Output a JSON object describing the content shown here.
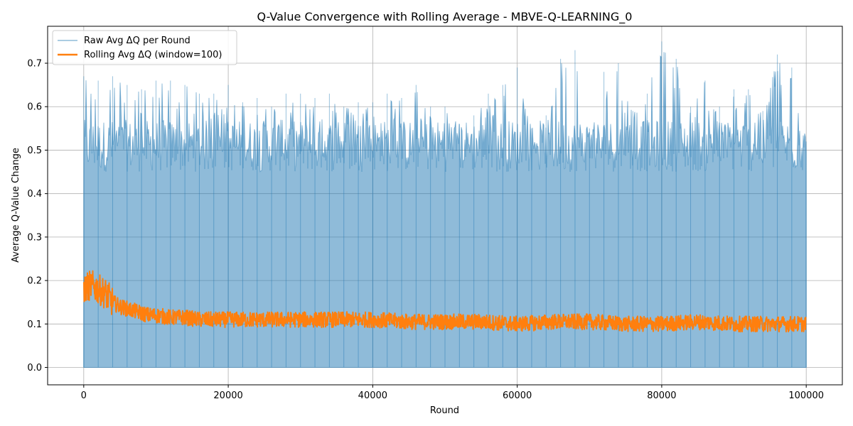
{
  "chart_data": {
    "type": "area",
    "title": "Q-Value Convergence with Rolling Average - MBVE-Q-LEARNING_0",
    "xlabel": "Round",
    "ylabel": "Average Q-Value Change",
    "xlim": [
      -5000,
      105000
    ],
    "ylim": [
      -0.04,
      0.785
    ],
    "x_ticks": [
      0,
      20000,
      40000,
      60000,
      80000,
      100000
    ],
    "x_tick_labels": [
      "0",
      "20000",
      "40000",
      "60000",
      "80000",
      "100000"
    ],
    "y_ticks": [
      0.0,
      0.1,
      0.2,
      0.3,
      0.4,
      0.5,
      0.6,
      0.7
    ],
    "y_tick_labels": [
      "0.0",
      "0.1",
      "0.2",
      "0.3",
      "0.4",
      "0.5",
      "0.6",
      "0.7"
    ],
    "grid": true,
    "legend_position": "top-left",
    "series": [
      {
        "name": "Raw Avg ΔQ per Round",
        "color": "#1f77b4",
        "style": "filled band from 0",
        "x": [
          0,
          2000,
          4000,
          6000,
          8000,
          10000,
          12000,
          14000,
          16000,
          18000,
          20000,
          22000,
          24000,
          26000,
          28000,
          30000,
          32000,
          34000,
          36000,
          38000,
          40000,
          42000,
          44000,
          46000,
          48000,
          50000,
          52000,
          54000,
          56000,
          58000,
          60000,
          62000,
          64000,
          66000,
          68000,
          70000,
          72000,
          74000,
          76000,
          78000,
          80000,
          82000,
          84000,
          86000,
          88000,
          90000,
          92000,
          94000,
          96000,
          98000,
          100000
        ],
        "values": [
          0.67,
          0.66,
          0.67,
          0.65,
          0.64,
          0.66,
          0.66,
          0.65,
          0.63,
          0.63,
          0.65,
          0.61,
          0.62,
          0.6,
          0.63,
          0.63,
          0.62,
          0.63,
          0.6,
          0.61,
          0.61,
          0.63,
          0.62,
          0.65,
          0.6,
          0.6,
          0.56,
          0.58,
          0.63,
          0.65,
          0.69,
          0.55,
          0.58,
          0.71,
          0.73,
          0.55,
          0.68,
          0.7,
          0.59,
          0.63,
          0.75,
          0.71,
          0.6,
          0.66,
          0.6,
          0.64,
          0.64,
          0.59,
          0.72,
          0.69,
          0.52
        ]
      },
      {
        "name": "Rolling Avg ΔQ (window=100)",
        "color": "#ff7f0e",
        "style": "noisy line",
        "x": [
          0,
          1000,
          2000,
          3000,
          4000,
          5000,
          6000,
          7000,
          8000,
          9000,
          10000,
          12000,
          14000,
          16000,
          18000,
          20000,
          25000,
          30000,
          35000,
          40000,
          45000,
          50000,
          55000,
          60000,
          65000,
          70000,
          75000,
          80000,
          85000,
          90000,
          95000,
          100000
        ],
        "values": [
          0.18,
          0.19,
          0.18,
          0.17,
          0.15,
          0.14,
          0.135,
          0.13,
          0.125,
          0.12,
          0.12,
          0.115,
          0.115,
          0.11,
          0.11,
          0.11,
          0.11,
          0.11,
          0.11,
          0.11,
          0.105,
          0.105,
          0.105,
          0.1,
          0.105,
          0.105,
          0.1,
          0.1,
          0.105,
          0.1,
          0.1,
          0.1
        ]
      }
    ]
  }
}
